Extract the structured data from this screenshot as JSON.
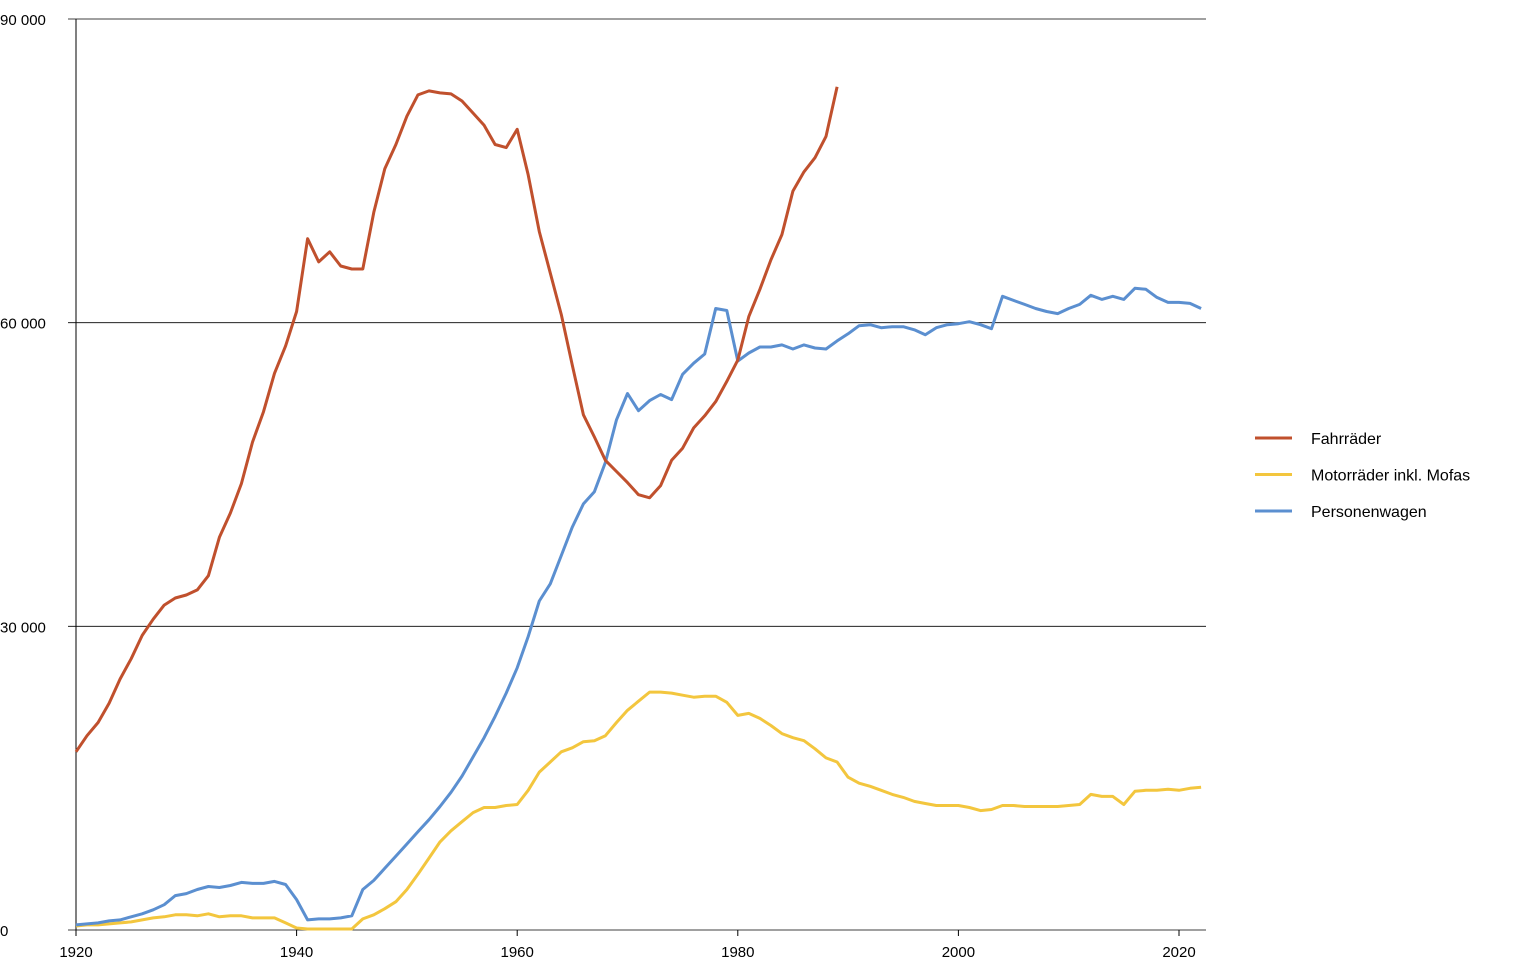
{
  "chart_data": {
    "type": "line",
    "title": "",
    "xlabel": "",
    "ylabel": "",
    "xlim": [
      1920,
      2022.5
    ],
    "ylim": [
      0,
      90000
    ],
    "grid": true,
    "legend_position": "right",
    "x_ticks": [
      1920,
      1940,
      1960,
      1980,
      2000,
      2020
    ],
    "x_tick_labels": [
      "1920",
      "1940",
      "1960",
      "1980",
      "2000",
      "2020"
    ],
    "y_ticks": [
      0,
      30000,
      60000,
      90000
    ],
    "y_tick_labels": [
      "0",
      "30 000",
      "60 000",
      "90 000"
    ],
    "series": [
      {
        "name": "Fahrräder",
        "color": "#c0502d",
        "start_year": 1920,
        "values": [
          17600,
          19200,
          20500,
          22400,
          24800,
          26800,
          29100,
          30700,
          32100,
          32800,
          33100,
          33600,
          35000,
          38800,
          41200,
          44100,
          48200,
          51200,
          55000,
          57700,
          61100,
          68300,
          66000,
          67000,
          65600,
          65300,
          65300,
          70900,
          75200,
          77600,
          80400,
          82500,
          82900,
          82700,
          82600,
          81900,
          80700,
          79500,
          77600,
          77300,
          79100,
          74600,
          69000,
          64900,
          60800,
          55800,
          50900,
          48700,
          46400,
          45300,
          44200,
          43000,
          42700,
          43900,
          46400,
          47600,
          49600,
          50800,
          52200,
          54200,
          56300,
          60600,
          63300,
          66200,
          68700,
          73000,
          74900,
          76300,
          78400,
          83300
        ]
      },
      {
        "name": "Motorräder inkl. Mofas",
        "color": "#f3c63e",
        "start_year": 1920,
        "values": [
          400,
          500,
          500,
          600,
          700,
          800,
          1000,
          1200,
          1300,
          1500,
          1500,
          1400,
          1600,
          1300,
          1400,
          1400,
          1200,
          1200,
          1200,
          700,
          200,
          100,
          100,
          100,
          100,
          100,
          1100,
          1500,
          2100,
          2800,
          4000,
          5500,
          7100,
          8700,
          9800,
          10700,
          11600,
          12100,
          12100,
          12300,
          12400,
          13800,
          15600,
          16600,
          17600,
          18000,
          18600,
          18700,
          19200,
          20500,
          21700,
          22600,
          23500,
          23500,
          23400,
          23200,
          23000,
          23100,
          23100,
          22500,
          21200,
          21400,
          20900,
          20200,
          19400,
          19000,
          18700,
          17900,
          17000,
          16600,
          15100,
          14500,
          14200,
          13800,
          13400,
          13100,
          12700,
          12500,
          12300,
          12300,
          12300,
          12100,
          11800,
          11900,
          12300,
          12300,
          12200,
          12200,
          12200,
          12200,
          12300,
          12400,
          13400,
          13200,
          13200,
          12400,
          13700,
          13800,
          13800,
          13900,
          13800,
          14000,
          14100
        ]
      },
      {
        "name": "Personenwagen",
        "color": "#5b8fd0",
        "start_year": 1920,
        "values": [
          500,
          600,
          700,
          900,
          1000,
          1300,
          1600,
          2000,
          2500,
          3400,
          3600,
          4000,
          4300,
          4200,
          4400,
          4700,
          4600,
          4600,
          4800,
          4500,
          3000,
          1000,
          1100,
          1100,
          1200,
          1400,
          4000,
          4900,
          6100,
          7300,
          8500,
          9700,
          10900,
          12200,
          13600,
          15200,
          17100,
          19000,
          21100,
          23400,
          25900,
          29000,
          32500,
          34200,
          37000,
          39800,
          42100,
          43300,
          46200,
          50400,
          53000,
          51300,
          52300,
          52900,
          52400,
          54900,
          56000,
          56900,
          61400,
          61200,
          56200,
          57000,
          57600,
          57600,
          57800,
          57400,
          57800,
          57500,
          57400,
          58200,
          58900,
          59700,
          59800,
          59500,
          59600,
          59600,
          59300,
          58800,
          59500,
          59800,
          59900,
          60100,
          59800,
          59400,
          62600,
          62200,
          61800,
          61400,
          61100,
          60900,
          61400,
          61800,
          62700,
          62300,
          62600,
          62300,
          63400,
          63300,
          62500,
          62000,
          62000,
          61900,
          61400
        ]
      }
    ]
  }
}
